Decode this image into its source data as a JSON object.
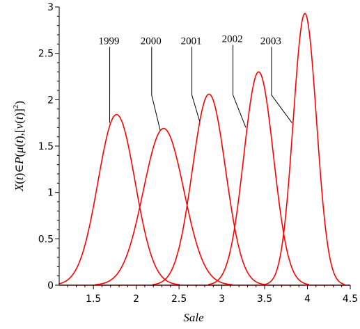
{
  "chart_data": {
    "type": "line",
    "title": "",
    "xlabel": "Sale",
    "ylabel_parts": {
      "a": "X",
      "b": "(",
      "c": "t",
      "d": ")∈",
      "e": "P",
      "f": "(",
      "g": "μ",
      "h": "(",
      "i": "t",
      "j": "),[",
      "k": "v",
      "l": "(",
      "m": "t",
      "n": ")]",
      "o": "2",
      "p": ")"
    },
    "xlim": [
      1.1,
      4.5
    ],
    "ylim": [
      0,
      3
    ],
    "xticks": [
      1.5,
      2,
      2.5,
      3,
      3.5,
      4,
      4.5
    ],
    "xtick_labels": [
      "1.5",
      "2",
      "2.5",
      "3",
      "3.5",
      "4",
      "4.5"
    ],
    "yticks": [
      0,
      0.5,
      1,
      1.5,
      2,
      2.5,
      3
    ],
    "ytick_labels": [
      "0",
      "0.5",
      "1",
      "1.5",
      "2",
      "2.5",
      "3"
    ],
    "series": [
      {
        "label": "1999",
        "mu": 1.77,
        "peak": 1.84,
        "label_x": 1.56,
        "label_y": 2.6,
        "line_to_x": 1.69,
        "line_to_y": 1.75
      },
      {
        "label": "2000",
        "mu": 2.32,
        "peak": 1.69,
        "label_x": 2.05,
        "label_y": 2.6,
        "line_to_x": 2.28,
        "line_to_y": 1.67
      },
      {
        "label": "2001",
        "mu": 2.85,
        "peak": 2.06,
        "label_x": 2.52,
        "label_y": 2.6,
        "line_to_x": 2.74,
        "line_to_y": 1.77
      },
      {
        "label": "2002",
        "mu": 3.43,
        "peak": 2.3,
        "label_x": 3.0,
        "label_y": 2.62,
        "line_to_x": 3.28,
        "line_to_y": 1.7
      },
      {
        "label": "2003",
        "mu": 3.97,
        "peak": 2.93,
        "label_x": 3.45,
        "label_y": 2.6,
        "line_to_x": 3.82,
        "line_to_y": 1.75
      }
    ],
    "line_color": "#ff0000",
    "grid": false,
    "legend": "none"
  }
}
